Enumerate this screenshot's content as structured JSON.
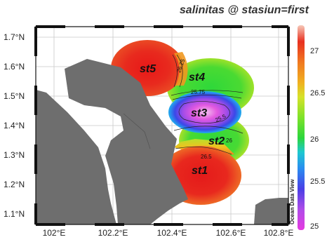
{
  "title": "salinitas @ stasiun=first",
  "watermark": "Ocean Data View",
  "axes": {
    "y_ticks": [
      "1.1°N",
      "1.2°N",
      "1.3°N",
      "1.4°N",
      "1.5°N",
      "1.6°N",
      "1.7°N"
    ],
    "x_ticks": [
      "102°E",
      "102.2°E",
      "102.4°E",
      "102.6°E",
      "102.8°E"
    ]
  },
  "stations": [
    {
      "id": "st1",
      "label": "st1",
      "lon": 102.52,
      "lat": 1.205,
      "salinity": 27.0
    },
    {
      "id": "st2",
      "label": "st2",
      "lon": 102.58,
      "lat": 1.35,
      "salinity": 26.1
    },
    {
      "id": "st3",
      "label": "st3",
      "lon": 102.53,
      "lat": 1.43,
      "salinity": 25.0
    },
    {
      "id": "st4",
      "label": "st4",
      "lon": 102.55,
      "lat": 1.55,
      "salinity": 26.0
    },
    {
      "id": "st5",
      "label": "st5",
      "lon": 102.38,
      "lat": 1.585,
      "salinity": 27.0
    }
  ],
  "contour_labels": [
    "26.25",
    "25.75",
    "25.5",
    "26",
    "26.5"
  ],
  "colorbar": {
    "ticks": [
      "27",
      "26.5",
      "26",
      "25.5",
      "25"
    ],
    "min": 25,
    "max": 27.2,
    "colors": [
      "#e53be0",
      "#9b4fe8",
      "#3a3fe6",
      "#2a8cf0",
      "#1ec8d0",
      "#2cd63c",
      "#7ee22a",
      "#d6e22a",
      "#f0b020",
      "#f07820",
      "#e83020",
      "#e81818"
    ]
  },
  "colors": {
    "land": "#6e6e6e",
    "frame": "#111111"
  }
}
